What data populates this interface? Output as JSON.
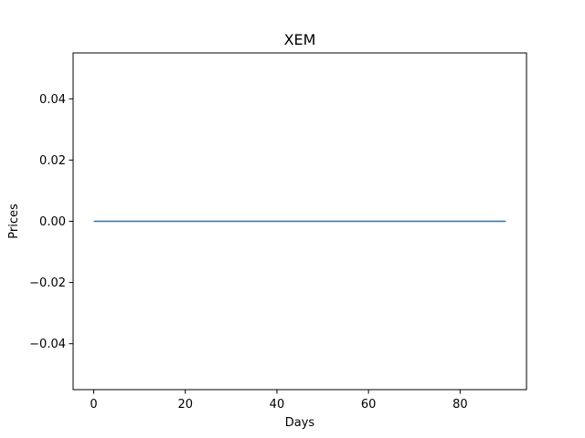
{
  "chart_data": {
    "type": "line",
    "title": "XEM",
    "xlabel": "Days",
    "ylabel": "Prices",
    "xlim": [
      -4.5,
      94.5
    ],
    "ylim": [
      -0.055,
      0.055
    ],
    "x_ticks": [
      {
        "value": 0,
        "label": "0"
      },
      {
        "value": 20,
        "label": "20"
      },
      {
        "value": 40,
        "label": "40"
      },
      {
        "value": 60,
        "label": "60"
      },
      {
        "value": 80,
        "label": "80"
      }
    ],
    "y_ticks": [
      {
        "value": -0.04,
        "label": "−0.04"
      },
      {
        "value": -0.02,
        "label": "−0.02"
      },
      {
        "value": 0.0,
        "label": "0.00"
      },
      {
        "value": 0.02,
        "label": "0.02"
      },
      {
        "value": 0.04,
        "label": "0.04"
      }
    ],
    "grid": false,
    "legend": "none",
    "series": [
      {
        "color": "#1f77b4",
        "x": [
          0,
          90
        ],
        "y": [
          0,
          0
        ]
      }
    ]
  }
}
